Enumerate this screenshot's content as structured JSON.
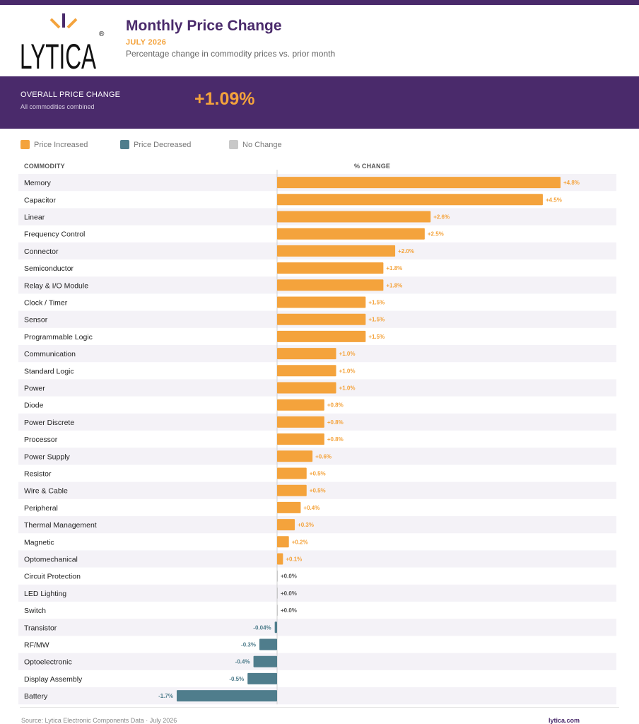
{
  "header": {
    "logo_text": "LYTICA",
    "logo_mark": "®",
    "title": "Monthly Price Change",
    "subtitle": "JULY 2026",
    "description": "Percentage change in commodity prices vs. prior month"
  },
  "summary": {
    "label": "OVERALL PRICE CHANGE",
    "sublabel": "All commodities combined",
    "value": "+1.09%"
  },
  "legend": [
    {
      "label": "Price Increased",
      "color": "#f4a33c"
    },
    {
      "label": "Price Decreased",
      "color": "#4f7d8c"
    },
    {
      "label": "No Change",
      "color": "#c8c8c8"
    }
  ],
  "columns": {
    "commodity": "COMMODITY",
    "change": "% CHANGE"
  },
  "colors": {
    "brand": "#4a2a6b",
    "increase": "#f4a33c",
    "decrease": "#4f7d8c",
    "nochange": "#c8c8c8",
    "row_alt": "#f4f2f7"
  },
  "chart_data": {
    "type": "bar",
    "orientation": "horizontal",
    "xlim": [
      -1.7,
      4.8
    ],
    "categories": [
      "Memory",
      "Capacitor",
      "Linear",
      "Frequency Control",
      "Connector",
      "Semiconductor",
      "Relay & I/O Module",
      "Clock / Timer",
      "Sensor",
      "Programmable Logic",
      "Communication",
      "Standard Logic",
      "Power",
      "Diode",
      "Power Discrete",
      "Processor",
      "Power Supply",
      "Resistor",
      "Wire & Cable",
      "Peripheral",
      "Thermal Management",
      "Magnetic",
      "Optomechanical",
      "Circuit Protection",
      "LED Lighting",
      "Switch",
      "Transistor",
      "RF/MW",
      "Optoelectronic",
      "Display Assembly",
      "Battery"
    ],
    "values": [
      4.8,
      4.5,
      2.6,
      2.5,
      2.0,
      1.8,
      1.8,
      1.5,
      1.5,
      1.5,
      1.0,
      1.0,
      1.0,
      0.8,
      0.8,
      0.8,
      0.6,
      0.5,
      0.5,
      0.4,
      0.3,
      0.2,
      0.1,
      0.0,
      0.0,
      0.0,
      -0.04,
      -0.3,
      -0.4,
      -0.5,
      -1.7
    ],
    "labels": [
      "+4.8%",
      "+4.5%",
      "+2.6%",
      "+2.5%",
      "+2.0%",
      "+1.8%",
      "+1.8%",
      "+1.5%",
      "+1.5%",
      "+1.5%",
      "+1.0%",
      "+1.0%",
      "+1.0%",
      "+0.8%",
      "+0.8%",
      "+0.8%",
      "+0.6%",
      "+0.5%",
      "+0.5%",
      "+0.4%",
      "+0.3%",
      "+0.2%",
      "+0.1%",
      "+0.0%",
      "+0.0%",
      "+0.0%",
      "-0.04%",
      "-0.3%",
      "-0.4%",
      "-0.5%",
      "-1.7%"
    ]
  },
  "footer": {
    "source": "Source: Lytica Electronic Components Data  ·  July 2026",
    "site": "lytica.com"
  }
}
